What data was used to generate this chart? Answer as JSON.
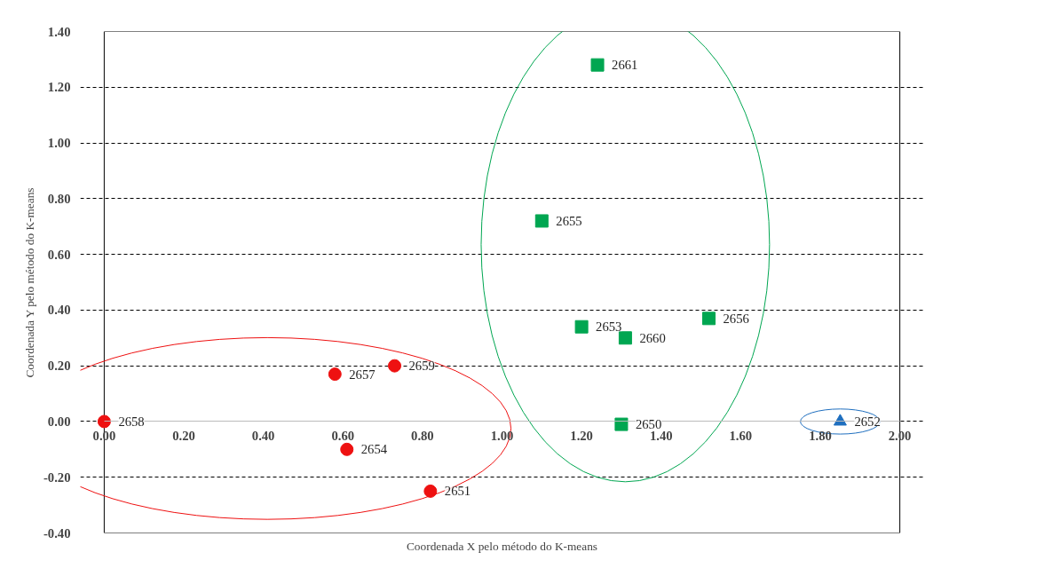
{
  "chart_data": {
    "type": "scatter",
    "xlabel": "Coordenada X pelo método do K-means",
    "ylabel": "Coordenada Y pelo método do K-means",
    "series": [
      {
        "color": "#ee1111",
        "marker": "circle",
        "x": [
          0.0,
          0.58,
          0.73,
          0.61,
          0.82
        ],
        "values": [
          0.0,
          0.17,
          0.2,
          -0.1,
          -0.25
        ]
      },
      {
        "color": "#00a651",
        "marker": "square",
        "x": [
          1.24,
          1.1,
          1.2,
          1.31,
          1.52,
          1.3
        ],
        "values": [
          1.28,
          0.72,
          0.34,
          0.3,
          0.37,
          -0.01
        ]
      },
      {
        "color": "#1f6fbf",
        "marker": "triangle",
        "x": [
          1.85
        ],
        "values": [
          0.0
        ]
      }
    ],
    "annotations": [
      {
        "text": "2658",
        "x": 0.0,
        "y": 0.0
      },
      {
        "text": "2657",
        "x": 0.58,
        "y": 0.17
      },
      {
        "text": "2659",
        "x": 0.73,
        "y": 0.2
      },
      {
        "text": "2654",
        "x": 0.61,
        "y": -0.1
      },
      {
        "text": "2651",
        "x": 0.82,
        "y": -0.25
      },
      {
        "text": "2661",
        "x": 1.24,
        "y": 1.28
      },
      {
        "text": "2655",
        "x": 1.1,
        "y": 0.72
      },
      {
        "text": "2653",
        "x": 1.2,
        "y": 0.34
      },
      {
        "text": "2660",
        "x": 1.31,
        "y": 0.3
      },
      {
        "text": "2656",
        "x": 1.52,
        "y": 0.37
      },
      {
        "text": "2650",
        "x": 1.3,
        "y": -0.01
      },
      {
        "text": "2652",
        "x": 1.85,
        "y": 0.0
      }
    ],
    "xlim": [
      0,
      2
    ],
    "ylim": [
      -0.4,
      1.4
    ],
    "xticks": [
      {
        "value": 0,
        "label": "0.00"
      },
      {
        "value": 0.2,
        "label": "0.20"
      },
      {
        "value": 0.4,
        "label": "0.40"
      },
      {
        "value": 0.6,
        "label": "0.60"
      },
      {
        "value": 0.8,
        "label": "0.80"
      },
      {
        "value": 1.0,
        "label": "1.00"
      },
      {
        "value": 1.2,
        "label": "1.20"
      },
      {
        "value": 1.4,
        "label": "1.40"
      },
      {
        "value": 1.6,
        "label": "1.60"
      },
      {
        "value": 1.8,
        "label": "1.80"
      },
      {
        "value": 2.0,
        "label": "2.00"
      }
    ],
    "yticks": [
      {
        "value": -0.4,
        "label": "-0.40"
      },
      {
        "value": -0.2,
        "label": "-0.20"
      },
      {
        "value": 0,
        "label": "0.00"
      },
      {
        "value": 0.2,
        "label": "0.20"
      },
      {
        "value": 0.4,
        "label": "0.40"
      },
      {
        "value": 0.6,
        "label": "0.60"
      },
      {
        "value": 0.8,
        "label": "0.80"
      },
      {
        "value": 1.0,
        "label": "1.00"
      },
      {
        "value": 1.2,
        "label": "1.20"
      },
      {
        "value": 1.4,
        "label": "1.40"
      }
    ],
    "grid": "y"
  }
}
